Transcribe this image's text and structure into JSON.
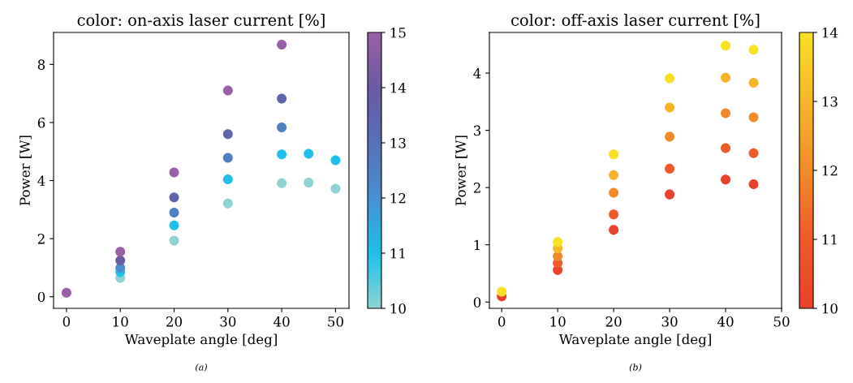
{
  "chart_data": [
    {
      "type": "scatter",
      "title": "color: on-axis laser current [%]",
      "xlabel": "Waveplate angle [deg]",
      "ylabel": "Power [W]",
      "annotations": [
        "(a)"
      ],
      "x": [
        0,
        10,
        10,
        10,
        10,
        10,
        20,
        20,
        20,
        20,
        20,
        30,
        30,
        30,
        30,
        30,
        40,
        40,
        40,
        40,
        40,
        45,
        45,
        50,
        50
      ],
      "values": [
        0.14,
        0.65,
        0.85,
        1.0,
        1.25,
        1.55,
        1.93,
        2.46,
        2.9,
        3.42,
        4.28,
        3.21,
        4.04,
        4.78,
        5.6,
        7.1,
        3.91,
        4.9,
        5.83,
        6.82,
        8.68,
        3.93,
        4.92,
        3.72,
        4.7
      ],
      "cvalues": [
        15,
        10,
        11,
        12,
        14,
        15,
        10,
        11,
        12.5,
        13.5,
        15,
        10,
        11,
        12.5,
        13.5,
        15,
        10,
        11,
        12.5,
        13.5,
        15,
        10,
        11,
        10,
        11
      ],
      "colors": [
        "#9b5fa8",
        "#8dd3d3",
        "#1ec0ea",
        "#4a8fd0",
        "#6a5aa3",
        "#9b5fa8",
        "#8dd3d3",
        "#1ec0ea",
        "#4f80c2",
        "#5f65ac",
        "#9b5fa8",
        "#8dd3d3",
        "#1ec0ea",
        "#4f80c2",
        "#5f65ac",
        "#9b5fa8",
        "#8dd3d3",
        "#1ec0ea",
        "#4f80c2",
        "#5f65ac",
        "#9b5fa8",
        "#8dd3d3",
        "#1ec0ea",
        "#8dd3d3",
        "#1ec0ea"
      ],
      "clim": [
        10,
        15
      ],
      "cticks": [
        10,
        11,
        12,
        13,
        14,
        15
      ],
      "xlim": [
        -2.4,
        52.5
      ],
      "ylim": [
        -0.4,
        9.1
      ],
      "xticks": [
        0,
        10,
        20,
        30,
        40,
        50
      ],
      "yticks": [
        0,
        2,
        4,
        6,
        8
      ],
      "marker": "circle"
    },
    {
      "type": "scatter",
      "title": "color: off-axis laser current [%]",
      "xlabel": "Waveplate angle [deg]",
      "ylabel": "Power [W]",
      "annotations": [
        "(b)"
      ],
      "x": [
        0,
        0,
        10,
        10,
        10,
        10,
        10,
        20,
        20,
        20,
        20,
        20,
        30,
        30,
        30,
        30,
        30,
        40,
        40,
        40,
        40,
        40,
        45,
        45,
        45,
        45,
        45
      ],
      "values": [
        0.1,
        0.18,
        0.56,
        0.68,
        0.8,
        0.94,
        1.05,
        1.26,
        1.53,
        1.91,
        2.22,
        2.58,
        1.88,
        2.33,
        2.89,
        3.4,
        3.91,
        2.14,
        2.69,
        3.3,
        3.92,
        4.48,
        2.06,
        2.6,
        3.23,
        3.83,
        4.41
      ],
      "cvalues": [
        10,
        14,
        10,
        11,
        12,
        13,
        14,
        10,
        11,
        12,
        13,
        14,
        10,
        11,
        12,
        13,
        14,
        10,
        11,
        12,
        13,
        14,
        10,
        11,
        12,
        13,
        14
      ],
      "colors": [
        "#e8432a",
        "#fae023",
        "#e8432a",
        "#ee5a28",
        "#f38a2a",
        "#f7b62a",
        "#fae023",
        "#e8432a",
        "#ee5a28",
        "#f38a2a",
        "#f7b62a",
        "#fae023",
        "#e8432a",
        "#ee5a28",
        "#f38a2a",
        "#f7b62a",
        "#fae023",
        "#e8432a",
        "#ee5a28",
        "#f38a2a",
        "#f7b62a",
        "#fae023",
        "#e8432a",
        "#ee5a28",
        "#f38a2a",
        "#f7b62a",
        "#fae023"
      ],
      "clim": [
        10,
        14
      ],
      "cticks": [
        10,
        11,
        12,
        13,
        14
      ],
      "xlim": [
        -2.2,
        50
      ],
      "ylim": [
        -0.11,
        4.71
      ],
      "xticks": [
        0,
        10,
        20,
        30,
        40,
        50
      ],
      "yticks": [
        0,
        1,
        2,
        3,
        4
      ],
      "marker": "circle"
    }
  ]
}
